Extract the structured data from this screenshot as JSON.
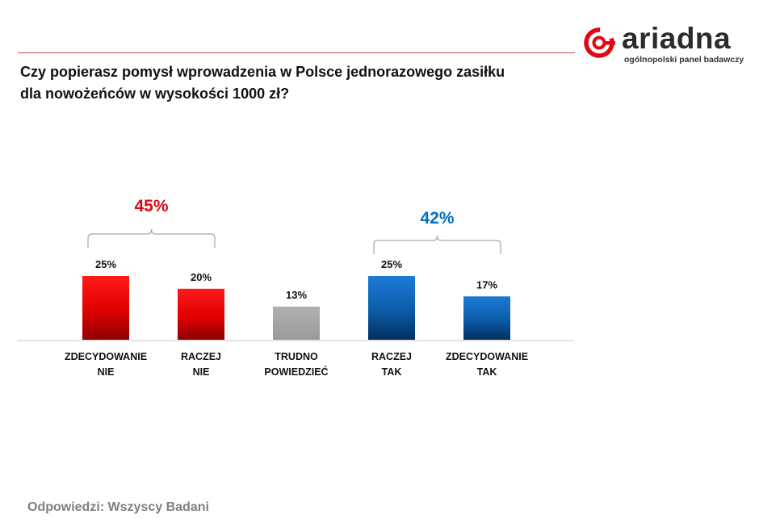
{
  "header": {
    "question_line1": "Czy popierasz pomysł wprowadzenia w Polsce jednorazowego zasiłku",
    "question_line2": "dla nowożeńców w wysokości 1000 zł?"
  },
  "logo": {
    "name": "ariadna",
    "tagline": "ogólnopolski panel badawczy",
    "icon": "ariadna-logo-icon",
    "color": "#e30613"
  },
  "footer": {
    "text": "Odpowiedzi: Wszyscy Badani"
  },
  "chart_data": {
    "type": "bar",
    "title": "Czy popierasz pomysł wprowadzenia w Polsce jednorazowego zasiłku dla nowożeńców w wysokości 1000 zł?",
    "categories": [
      [
        "ZDECYDOWANIE",
        "NIE"
      ],
      [
        "RACZEJ",
        "NIE"
      ],
      [
        "TRUDNO",
        "POWIEDZIEĆ"
      ],
      [
        "RACZEJ",
        "TAK"
      ],
      [
        "ZDECYDOWANIE",
        "TAK"
      ]
    ],
    "values": [
      25,
      20,
      13,
      25,
      17
    ],
    "value_labels": [
      "25%",
      "20%",
      "13%",
      "25%",
      "17%"
    ],
    "colors": [
      "#e30613",
      "#e30613",
      "#a6a6a6",
      "#0070c0",
      "#0070c0"
    ],
    "ylim": [
      0,
      25
    ],
    "grid": false,
    "groups": [
      {
        "label": "45%",
        "from": 0,
        "to": 1,
        "color": "#e30613"
      },
      {
        "label": "42%",
        "from": 3,
        "to": 4,
        "color": "#0070c0"
      }
    ]
  }
}
